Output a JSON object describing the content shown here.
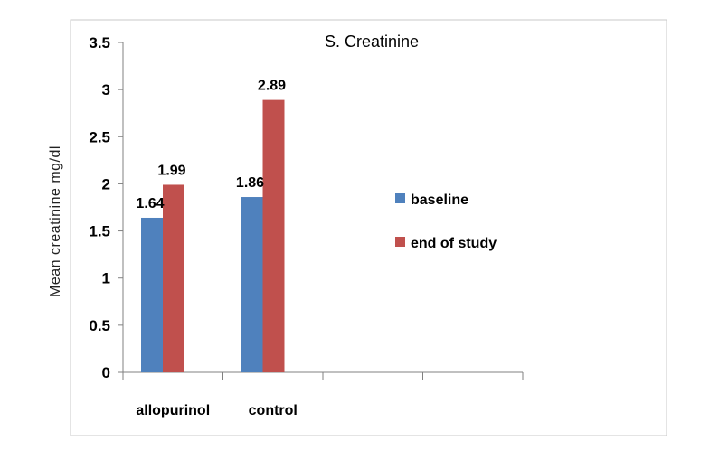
{
  "chart_data": {
    "type": "bar",
    "title": "S. Creatinine",
    "xlabel": "",
    "ylabel": "Mean creatinine mg/dl",
    "categories": [
      "allopurinol",
      "control",
      "",
      ""
    ],
    "series": [
      {
        "name": "baseline",
        "values": [
          1.64,
          1.86,
          null,
          null
        ],
        "color": "#4f81bd"
      },
      {
        "name": "end of study",
        "values": [
          1.99,
          2.89,
          null,
          null
        ],
        "color": "#c0504d"
      }
    ],
    "data_labels": [
      [
        "1.64",
        "1.86"
      ],
      [
        "1.99",
        "2.89"
      ]
    ],
    "ylim": [
      0,
      3.5
    ],
    "yticks": [
      "0",
      "0.5",
      "1",
      "1.5",
      "2",
      "2.5",
      "3",
      "3.5"
    ],
    "grid": false,
    "legend_position": "right"
  }
}
